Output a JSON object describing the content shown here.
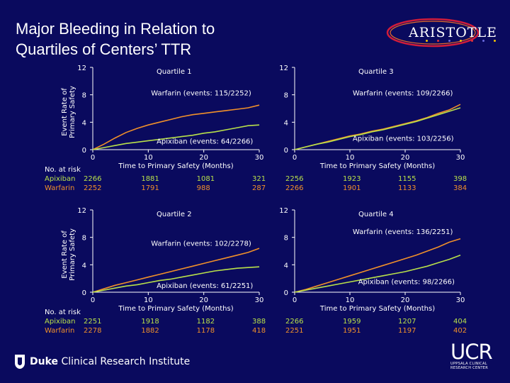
{
  "title_line1": "Major Bleeding in Relation to",
  "title_line2": "Quartiles of Centers’ TTR",
  "logo": {
    "word": "ARISTOTLE",
    "dot_colors": [
      "#f2c200",
      "#e0303a",
      "#6a6adf",
      "#f2c200",
      "#e0303a",
      "#6a6adf",
      "#f2c200"
    ]
  },
  "footer": {
    "duke_bold": "Duke",
    "duke_rest": " Clinical Research Institute",
    "ucr_big": "UCR",
    "ucr_line1": "UPPSALA CLINICAL",
    "ucr_line2": "RESEARCH CENTER"
  },
  "colors": {
    "apixaban": "#b8e04a",
    "warfarin": "#f0902a",
    "axis": "#ffffff"
  },
  "shared": {
    "ylabel": "Event Rate of Primary Safety",
    "xlabel": "Time to Primary Safety (Months)",
    "at_risk_label": "No. at risk",
    "apixaban_label": "Apixiban",
    "warfarin_label": "Warfarin",
    "xticks": [
      0,
      10,
      20,
      30
    ],
    "yticks": [
      0,
      4,
      8,
      12
    ]
  },
  "chart_data": [
    {
      "type": "line",
      "title": "Quartile 1",
      "xlim": [
        0,
        30
      ],
      "ylim": [
        0,
        12
      ],
      "series": [
        {
          "name": "Warfarin (events: 115/2252)",
          "x": [
            0,
            2,
            4,
            6,
            8,
            10,
            12,
            14,
            16,
            18,
            20,
            22,
            24,
            26,
            28,
            30
          ],
          "y": [
            0,
            0.8,
            1.7,
            2.5,
            3.1,
            3.6,
            4.0,
            4.4,
            4.8,
            5.1,
            5.3,
            5.5,
            5.7,
            5.9,
            6.1,
            6.5
          ]
        },
        {
          "name": "Apixiban (events: 64/2266)",
          "x": [
            0,
            2,
            4,
            6,
            8,
            10,
            12,
            14,
            16,
            18,
            20,
            22,
            24,
            26,
            28,
            30
          ],
          "y": [
            0,
            0.3,
            0.6,
            0.9,
            1.1,
            1.3,
            1.5,
            1.7,
            1.9,
            2.1,
            2.4,
            2.6,
            2.9,
            3.2,
            3.5,
            3.6
          ]
        }
      ],
      "at_risk": {
        "apixaban": [
          "2266",
          "1881",
          "1081",
          "321"
        ],
        "warfarin": [
          "2252",
          "1791",
          "988",
          "287"
        ]
      }
    },
    {
      "type": "line",
      "title": "Quartile 3",
      "xlim": [
        0,
        30
      ],
      "ylim": [
        0,
        12
      ],
      "series": [
        {
          "name": "Warfarin (events: 109/2266)",
          "x": [
            0,
            2,
            4,
            6,
            8,
            10,
            12,
            14,
            16,
            18,
            20,
            22,
            24,
            26,
            28,
            30
          ],
          "y": [
            0,
            0.4,
            0.8,
            1.2,
            1.6,
            2.0,
            2.3,
            2.7,
            3.0,
            3.4,
            3.8,
            4.2,
            4.7,
            5.3,
            5.8,
            6.6
          ]
        },
        {
          "name": "Apixiban (events: 103/2256)",
          "x": [
            0,
            2,
            4,
            6,
            8,
            10,
            12,
            14,
            16,
            18,
            20,
            22,
            24,
            26,
            28,
            30
          ],
          "y": [
            0,
            0.4,
            0.8,
            1.1,
            1.5,
            1.9,
            2.2,
            2.6,
            2.9,
            3.3,
            3.7,
            4.1,
            4.6,
            5.1,
            5.6,
            6.1
          ]
        }
      ],
      "at_risk": {
        "apixaban": [
          "2256",
          "1923",
          "1155",
          "398"
        ],
        "warfarin": [
          "2266",
          "1901",
          "1133",
          "384"
        ]
      }
    },
    {
      "type": "line",
      "title": "Quartile 2",
      "xlim": [
        0,
        30
      ],
      "ylim": [
        0,
        12
      ],
      "series": [
        {
          "name": "Warfarin (events: 102/2278)",
          "x": [
            0,
            2,
            4,
            6,
            8,
            10,
            12,
            14,
            16,
            18,
            20,
            22,
            24,
            26,
            28,
            30
          ],
          "y": [
            0,
            0.5,
            1.0,
            1.4,
            1.8,
            2.2,
            2.6,
            3.0,
            3.4,
            3.8,
            4.2,
            4.6,
            5.0,
            5.4,
            5.8,
            6.4
          ]
        },
        {
          "name": "Apixiban (events: 61/2251)",
          "x": [
            0,
            2,
            4,
            6,
            8,
            10,
            12,
            14,
            16,
            18,
            20,
            22,
            24,
            26,
            28,
            30
          ],
          "y": [
            0,
            0.3,
            0.6,
            0.9,
            1.1,
            1.4,
            1.7,
            1.9,
            2.2,
            2.5,
            2.8,
            3.1,
            3.3,
            3.5,
            3.6,
            3.7
          ]
        }
      ],
      "at_risk": {
        "apixaban": [
          "2251",
          "1918",
          "1182",
          "388"
        ],
        "warfarin": [
          "2278",
          "1882",
          "1178",
          "418"
        ]
      }
    },
    {
      "type": "line",
      "title": "Quartile 4",
      "xlim": [
        0,
        30
      ],
      "ylim": [
        0,
        12
      ],
      "series": [
        {
          "name": "Warfarin (events: 136/2251)",
          "x": [
            0,
            2,
            4,
            6,
            8,
            10,
            12,
            14,
            16,
            18,
            20,
            22,
            24,
            26,
            28,
            30
          ],
          "y": [
            0,
            0.4,
            0.9,
            1.4,
            1.9,
            2.4,
            2.9,
            3.4,
            3.9,
            4.4,
            4.9,
            5.4,
            6.0,
            6.6,
            7.3,
            7.8
          ]
        },
        {
          "name": "Apixiban (events: 98/2266)",
          "x": [
            0,
            2,
            4,
            6,
            8,
            10,
            12,
            14,
            16,
            18,
            20,
            22,
            24,
            26,
            28,
            30
          ],
          "y": [
            0,
            0.3,
            0.6,
            0.9,
            1.2,
            1.5,
            1.8,
            2.1,
            2.4,
            2.7,
            3.0,
            3.4,
            3.8,
            4.3,
            4.8,
            5.4
          ]
        }
      ],
      "at_risk": {
        "apixaban": [
          "2266",
          "1959",
          "1207",
          "404"
        ],
        "warfarin": [
          "2251",
          "1951",
          "1197",
          "402"
        ]
      }
    }
  ]
}
